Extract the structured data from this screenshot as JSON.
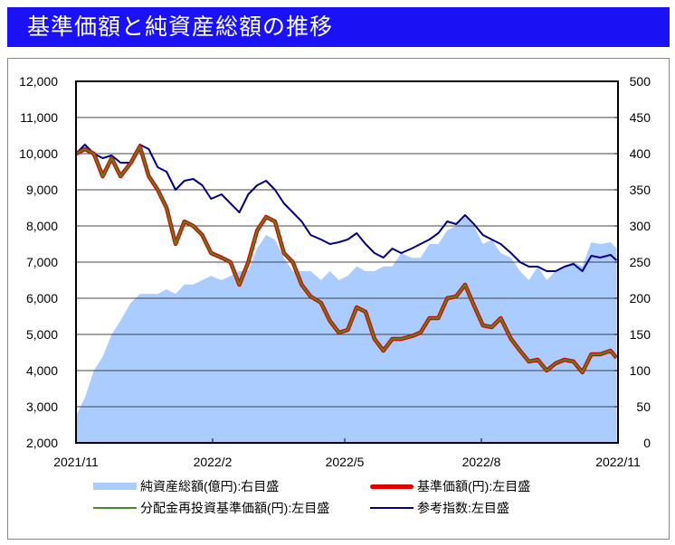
{
  "title": "基準価額と純資産総額の推移",
  "chart_data": {
    "type": "line",
    "title": "基準価額と純資産総額の推移",
    "x_ticks": [
      "2021/11",
      "2022/2",
      "2022/5",
      "2022/8",
      "2022/11"
    ],
    "x_range": [
      "2021/11/01",
      "2022/11/01"
    ],
    "y_left": {
      "range": [
        2000,
        12000
      ],
      "ticks": [
        "2,000",
        "3,000",
        "4,000",
        "5,000",
        "6,000",
        "7,000",
        "8,000",
        "9,000",
        "10,000",
        "11,000",
        "12,000"
      ]
    },
    "y_right": {
      "range": [
        0,
        500
      ],
      "ticks": [
        "0",
        "50",
        "100",
        "150",
        "200",
        "250",
        "300",
        "350",
        "400",
        "450",
        "500"
      ]
    },
    "grid": true,
    "legend_position": "bottom",
    "x": [
      "2021/11/01",
      "2021/11/07",
      "2021/11/13",
      "2021/11/19",
      "2021/11/25",
      "2021/12/01",
      "2021/12/08",
      "2021/12/14",
      "2021/12/20",
      "2021/12/26",
      "2022/01/01",
      "2022/01/07",
      "2022/01/13",
      "2022/01/19",
      "2022/01/25",
      "2022/01/31",
      "2022/02/07",
      "2022/02/13",
      "2022/02/19",
      "2022/02/25",
      "2022/03/03",
      "2022/03/09",
      "2022/03/15",
      "2022/03/21",
      "2022/03/27",
      "2022/04/02",
      "2022/04/08",
      "2022/04/15",
      "2022/04/21",
      "2022/04/27",
      "2022/05/03",
      "2022/05/09",
      "2022/05/15",
      "2022/05/21",
      "2022/05/27",
      "2022/06/02",
      "2022/06/08",
      "2022/06/15",
      "2022/06/21",
      "2022/06/27",
      "2022/07/03",
      "2022/07/09",
      "2022/07/15",
      "2022/07/21",
      "2022/07/27",
      "2022/08/02",
      "2022/08/08",
      "2022/08/14",
      "2022/08/21",
      "2022/08/27",
      "2022/09/02",
      "2022/09/08",
      "2022/09/14",
      "2022/09/20",
      "2022/09/26",
      "2022/10/02",
      "2022/10/08",
      "2022/10/14",
      "2022/10/20",
      "2022/10/27",
      "2022/10/31"
    ],
    "series": [
      {
        "name": "純資産総額(億円):右目盛",
        "axis": "right",
        "kind": "area",
        "color": "#aaccff",
        "values": [
          37.5,
          62.5,
          100,
          119,
          150,
          169,
          194,
          206,
          206,
          206,
          212.5,
          206,
          219,
          219,
          225,
          231,
          225,
          231,
          237.5,
          237.5,
          269,
          287.5,
          281,
          256,
          237.5,
          237.5,
          237.5,
          225,
          237.5,
          225,
          231,
          244,
          237.5,
          237.5,
          244,
          244,
          262.5,
          256,
          256,
          275,
          275,
          294,
          300,
          312.5,
          300,
          275,
          281,
          262.5,
          256,
          237.5,
          225,
          244,
          225,
          237.5,
          244,
          250,
          244,
          277.5,
          275,
          277.5,
          269
        ]
      },
      {
        "name": "基準価額(円):左目盛",
        "axis": "left",
        "kind": "line",
        "color": "#e00000",
        "values": [
          10000,
          10125,
          10000,
          9375,
          9875,
          9375,
          9750,
          10200,
          9375,
          9000,
          8500,
          7500,
          8125,
          8000,
          7750,
          7250,
          7125,
          7000,
          6375,
          7000,
          7875,
          8250,
          8125,
          7250,
          7000,
          6375,
          6050,
          5875,
          5375,
          5050,
          5125,
          5750,
          5625,
          4875,
          4550,
          4875,
          4875,
          4950,
          5050,
          5450,
          5450,
          6000,
          6050,
          6375,
          5800,
          5250,
          5200,
          5450,
          4875,
          4550,
          4250,
          4300,
          4000,
          4200,
          4300,
          4250,
          3950,
          4450,
          4450,
          4550,
          4350
        ]
      },
      {
        "name": "分配金再投資基準価額(円):左目盛",
        "axis": "left",
        "kind": "line",
        "color": "#4a8a1e",
        "values": [
          10000,
          10125,
          10000,
          9375,
          9875,
          9375,
          9750,
          10200,
          9375,
          9000,
          8500,
          7500,
          8125,
          8000,
          7750,
          7250,
          7125,
          7000,
          6375,
          7000,
          7875,
          8250,
          8125,
          7250,
          7000,
          6375,
          6050,
          5875,
          5375,
          5050,
          5125,
          5750,
          5625,
          4875,
          4550,
          4875,
          4875,
          4950,
          5050,
          5450,
          5450,
          6000,
          6050,
          6375,
          5800,
          5250,
          5200,
          5450,
          4875,
          4550,
          4250,
          4300,
          4000,
          4200,
          4300,
          4250,
          3950,
          4450,
          4450,
          4550,
          4350
        ]
      },
      {
        "name": "参考指数:左目盛",
        "axis": "left",
        "kind": "line",
        "color": "#000080",
        "values": [
          10000,
          10250,
          10000,
          9875,
          9950,
          9750,
          9750,
          10250,
          10125,
          9625,
          9500,
          9000,
          9250,
          9300,
          9125,
          8750,
          8875,
          8625,
          8375,
          8875,
          9125,
          9250,
          9000,
          8625,
          8375,
          8125,
          7750,
          7625,
          7500,
          7550,
          7625,
          7800,
          7500,
          7250,
          7125,
          7375,
          7250,
          7375,
          7500,
          7625,
          7800,
          8125,
          8050,
          8300,
          8050,
          7750,
          7625,
          7500,
          7250,
          7000,
          6875,
          6875,
          6750,
          6750,
          6875,
          6950,
          6750,
          7175,
          7125,
          7200,
          7050
        ]
      }
    ]
  }
}
